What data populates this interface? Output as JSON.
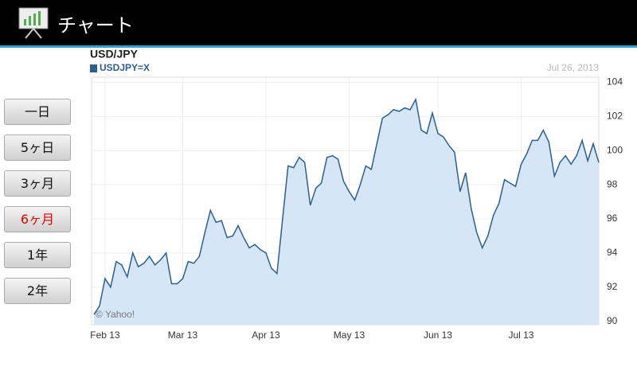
{
  "app_bar": {
    "title": "チャート"
  },
  "buttons": [
    {
      "label": "一日",
      "active": false
    },
    {
      "label": "5ヶ日",
      "active": false
    },
    {
      "label": "3ヶ月",
      "active": false
    },
    {
      "label": "6ヶ月",
      "active": true
    },
    {
      "label": "1年",
      "active": false
    },
    {
      "label": "2年",
      "active": false
    }
  ],
  "chart_data": {
    "type": "line",
    "title": "USD/JPY",
    "date": "Jul 26, 2013",
    "credit": "© Yahoo!",
    "area": true,
    "grid": true,
    "series": [
      {
        "name": "USDJPY=X",
        "color": "#2d5f8e",
        "fill": "#d6e6f6",
        "values": [
          90.4,
          90.9,
          92.5,
          92.0,
          93.5,
          93.3,
          92.6,
          94.0,
          93.2,
          93.4,
          93.8,
          93.3,
          93.6,
          94.0,
          92.2,
          92.2,
          92.5,
          93.5,
          93.4,
          93.8,
          95.2,
          96.5,
          95.8,
          95.9,
          94.9,
          95.0,
          95.6,
          94.9,
          94.3,
          94.5,
          94.2,
          94.0,
          93.1,
          92.8,
          96.0,
          99.1,
          99.0,
          99.6,
          99.3,
          96.8,
          97.8,
          98.1,
          99.6,
          99.7,
          99.5,
          98.2,
          97.6,
          97.1,
          98.0,
          99.1,
          98.9,
          100.4,
          101.9,
          102.1,
          102.4,
          102.3,
          102.5,
          102.4,
          103.0,
          101.2,
          101.0,
          102.2,
          101.0,
          100.8,
          100.3,
          99.9,
          97.6,
          98.7,
          96.6,
          95.2,
          94.3,
          95.0,
          96.2,
          96.9,
          98.3,
          98.1,
          97.9,
          99.2,
          99.8,
          100.6,
          100.6,
          101.2,
          100.5,
          98.5,
          99.3,
          99.7,
          99.2,
          99.7,
          100.6,
          99.4,
          100.4,
          99.3
        ]
      }
    ],
    "xlim": [
      0,
      91
    ],
    "xticks": [
      {
        "value": 2,
        "label": "Feb 13"
      },
      {
        "value": 16,
        "label": "Mar 13"
      },
      {
        "value": 31,
        "label": "Apr 13"
      },
      {
        "value": 46,
        "label": "May 13"
      },
      {
        "value": 62,
        "label": "Jun 13"
      },
      {
        "value": 77,
        "label": "Jul 13"
      }
    ],
    "ylim": [
      89.8,
      104.3
    ],
    "yticks": [
      90,
      92,
      94,
      96,
      98,
      100,
      102,
      104
    ]
  }
}
